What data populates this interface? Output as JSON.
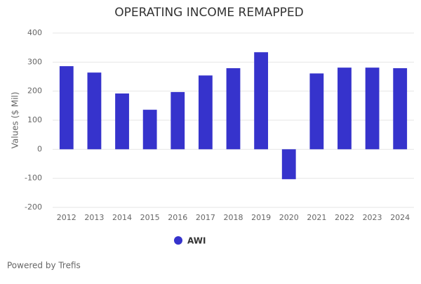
{
  "chart_data": {
    "type": "bar",
    "title": "OPERATING INCOME REMAPPED",
    "y_label": "Values ($ Mil)",
    "categories": [
      "2012",
      "2013",
      "2014",
      "2015",
      "2016",
      "2017",
      "2018",
      "2019",
      "2020",
      "2021",
      "2022",
      "2023",
      "2024"
    ],
    "series": [
      {
        "name": "AWI",
        "color": "#3633cc",
        "values": [
          286,
          264,
          192,
          136,
          197,
          254,
          279,
          334,
          -103,
          261,
          281,
          281,
          279
        ]
      }
    ],
    "ylim": [
      -200,
      400
    ],
    "yticks": [
      -200,
      -100,
      0,
      100,
      200,
      300,
      400
    ],
    "grid": true,
    "legend": "bottom",
    "footer": "Powered by Trefis"
  }
}
